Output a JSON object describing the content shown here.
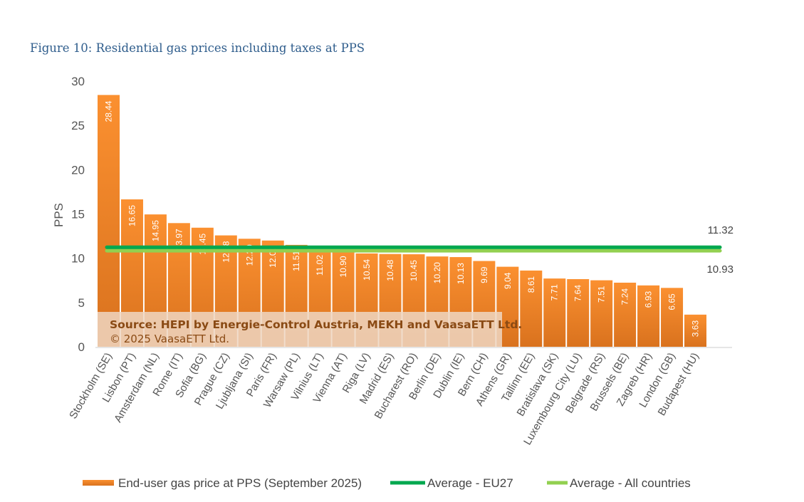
{
  "chart_data": {
    "type": "bar",
    "title": "Figure 10: Residential gas prices including taxes at PPS",
    "xlabel": "",
    "ylabel": "PPS",
    "ylim": [
      0,
      30
    ],
    "yticks": [
      "0",
      "5",
      "10",
      "15",
      "20",
      "25",
      "30"
    ],
    "grid": false,
    "categories": [
      "Stockholm (SE)",
      "Lisbon (PT)",
      "Amsterdam (NL)",
      "Rome (IT)",
      "Sofia (BG)",
      "Prague (CZ)",
      "Ljubljana (SI)",
      "Paris (FR)",
      "Warsaw (PL)",
      "Vilnius (LT)",
      "Vienna (AT)",
      "Riga (LV)",
      "Madrid (ES)",
      "Bucharest (RO)",
      "Berlin (DE)",
      "Dublin (IE)",
      "Bern (CH)",
      "Athens (GR)",
      "Tallinn (EE)",
      "Bratislava (SK)",
      "Luxembourg City (LU)",
      "Belgrade (RS)",
      "Brussels (BE)",
      "Zagreb (HR)",
      "London (GB)",
      "Budapest (HU)"
    ],
    "values": [
      28.44,
      16.65,
      14.95,
      13.97,
      13.45,
      12.58,
      12.2,
      12.0,
      11.51,
      11.02,
      10.9,
      10.54,
      10.48,
      10.45,
      10.2,
      10.13,
      9.69,
      9.04,
      8.61,
      7.71,
      7.64,
      7.51,
      7.24,
      6.93,
      6.65,
      3.63
    ],
    "value_labels": [
      "28.44",
      "16.65",
      "14.95",
      "13.97",
      "13.45",
      "12.58",
      "12.20",
      "12.00",
      "11.51",
      "11.02",
      "10.90",
      "10.54",
      "10.48",
      "10.45",
      "10.20",
      "10.13",
      "9.69",
      "9.04",
      "8.61",
      "7.71",
      "7.64",
      "7.51",
      "7.24",
      "6.93",
      "6.65",
      "3.63"
    ],
    "series": [
      {
        "name": "End-user gas price at PPS (September 2025)",
        "kind": "bar",
        "color": "#f28a2a"
      },
      {
        "name": "Average - EU27",
        "kind": "line",
        "value": 11.32,
        "label": "11.32",
        "color": "#00a84f"
      },
      {
        "name": "Average - All countries",
        "kind": "line",
        "value": 10.93,
        "label": "10.93",
        "color": "#92d050"
      }
    ],
    "legend": "bottom",
    "annotation": {
      "source": "Source: HEPI by Energie-Control Austria, MEKH and VaasaETT Ltd.",
      "copyright": "© 2025 VaasaETT Ltd."
    }
  }
}
